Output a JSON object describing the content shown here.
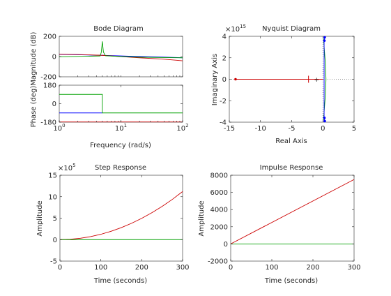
{
  "chart_data": [
    {
      "type": "line",
      "title": "Bode Diagram",
      "xlabel": "Frequency  (rad/s)",
      "x_scale": "log",
      "x_ticks": [
        1,
        10,
        100
      ],
      "x_tick_labels": [
        [
          "10",
          "0"
        ],
        [
          "10",
          "1"
        ],
        [
          "10",
          "2"
        ]
      ],
      "xlim": [
        1,
        100
      ],
      "grid": false,
      "magnitude": {
        "ylabel": "Magnitude (dB)",
        "ylim": [
          -200,
          200
        ],
        "y_ticks": [
          -200,
          0,
          200
        ],
        "y_tick_labels": [
          "-200",
          "0",
          "200"
        ],
        "series": [
          {
            "color": "#0000ff",
            "x": [
              1,
              2,
              5,
              10,
              20,
              50,
              100
            ],
            "y": [
              22,
              18,
              12,
              6,
              0,
              -6,
              -12
            ]
          },
          {
            "color": "#cc0000",
            "x": [
              1,
              2,
              5,
              10,
              20,
              50,
              100
            ],
            "y": [
              24,
              20,
              12,
              0,
              -12,
              -26,
              -42
            ]
          },
          {
            "color": "#00a000",
            "x": [
              1,
              2,
              4.6,
              4.8,
              5.0,
              5.2,
              5.6,
              10,
              20,
              50,
              100
            ],
            "y": [
              -2,
              1,
              6,
              40,
              150,
              45,
              8,
              0,
              -6,
              -10,
              -12
            ]
          }
        ]
      },
      "phase": {
        "ylabel": "Phase (deg)",
        "ylim": [
          -180,
          180
        ],
        "y_ticks": [
          -180,
          0,
          180
        ],
        "y_tick_labels": [
          "-180",
          "0",
          "180"
        ],
        "series": [
          {
            "color": "#0000ff",
            "x": [
              1,
              5
            ],
            "y": [
              -90,
              -90
            ]
          },
          {
            "color": "#cc0000",
            "x": [
              1,
              100
            ],
            "y": [
              -178,
              -178
            ]
          },
          {
            "color": "#00a000",
            "x": [
              1,
              5,
              5,
              100
            ],
            "y": [
              90,
              90,
              -90,
              -90
            ]
          }
        ]
      }
    },
    {
      "type": "line",
      "title": "Nyquist Diagram",
      "xlabel": "Real Axis",
      "ylabel": "Imaginary Axis",
      "xlim": [
        -15,
        5
      ],
      "ylim": [
        -4,
        4
      ],
      "y_exponent": "15",
      "x_ticks": [
        -15,
        -10,
        -5,
        0,
        5
      ],
      "x_tick_labels": [
        "-15",
        "-10",
        "-5",
        "0",
        "5"
      ],
      "y_ticks": [
        -4,
        -2,
        0,
        2,
        4
      ],
      "y_tick_labels": [
        "-4",
        "-2",
        "0",
        "2",
        "4"
      ],
      "grid": false,
      "critical_point": [
        -1,
        0
      ],
      "series": [
        {
          "color": "#cc0000",
          "x": [
            -14,
            0
          ],
          "y": [
            0,
            0
          ]
        },
        {
          "color": "#00a000",
          "x": [
            0.1,
            0.4,
            0.5,
            0.4,
            0.1
          ],
          "y": [
            -3.8,
            -1.5,
            0,
            1.5,
            3.8
          ]
        },
        {
          "color": "#0000ff",
          "x": [
            0.3,
            0.2,
            0.2,
            0.3
          ],
          "y": [
            -3.9,
            -3.6,
            3.6,
            3.9
          ]
        }
      ],
      "markers": [
        {
          "color": "#cc0000",
          "shape": "dot",
          "x": -14,
          "y": 0
        },
        {
          "color": "#cc0000",
          "shape": "bar",
          "x": -2.3,
          "y": 0
        },
        {
          "color": "#0000ff",
          "shape": "dot",
          "x": 0.3,
          "y": 3.9
        },
        {
          "color": "#0000ff",
          "shape": "dot",
          "x": 0.3,
          "y": -3.9
        },
        {
          "color": "#0000ff",
          "shape": "dot",
          "x": 0.25,
          "y": 3.6
        },
        {
          "color": "#0000ff",
          "shape": "dot",
          "x": 0.25,
          "y": -3.6
        }
      ]
    },
    {
      "type": "line",
      "title": "Step Response",
      "xlabel": "Time (seconds)",
      "ylabel": "Amplitude",
      "xlim": [
        0,
        300
      ],
      "ylim": [
        -5,
        15
      ],
      "y_exponent": "5",
      "x_ticks": [
        0,
        100,
        200,
        300
      ],
      "x_tick_labels": [
        "0",
        "100",
        "200",
        "300"
      ],
      "y_ticks": [
        -5,
        0,
        5,
        10,
        15
      ],
      "y_tick_labels": [
        "-5",
        "0",
        "5",
        "10",
        "15"
      ],
      "grid": false,
      "series": [
        {
          "color": "#cc0000",
          "x": [
            0,
            25,
            50,
            75,
            100,
            125,
            150,
            175,
            200,
            225,
            250,
            275,
            300
          ],
          "y": [
            0,
            0.08,
            0.31,
            0.7,
            1.24,
            1.94,
            2.79,
            3.8,
            4.96,
            6.28,
            7.75,
            9.38,
            11.2
          ]
        },
        {
          "color": "#00a000",
          "x": [
            0,
            300
          ],
          "y": [
            0,
            0
          ]
        }
      ]
    },
    {
      "type": "line",
      "title": "Impulse Response",
      "xlabel": "Time (seconds)",
      "ylabel": "Amplitude",
      "xlim": [
        0,
        300
      ],
      "ylim": [
        -2000,
        8000
      ],
      "x_ticks": [
        0,
        100,
        200,
        300
      ],
      "x_tick_labels": [
        "0",
        "100",
        "200",
        "300"
      ],
      "y_ticks": [
        -2000,
        0,
        2000,
        4000,
        6000,
        8000
      ],
      "y_tick_labels": [
        "-2000",
        "0",
        "2000",
        "4000",
        "6000",
        "8000"
      ],
      "grid": false,
      "series": [
        {
          "color": "#cc0000",
          "x": [
            0,
            300
          ],
          "y": [
            0,
            7500
          ]
        },
        {
          "color": "#00a000",
          "x": [
            0,
            300
          ],
          "y": [
            0,
            0
          ]
        }
      ]
    }
  ]
}
